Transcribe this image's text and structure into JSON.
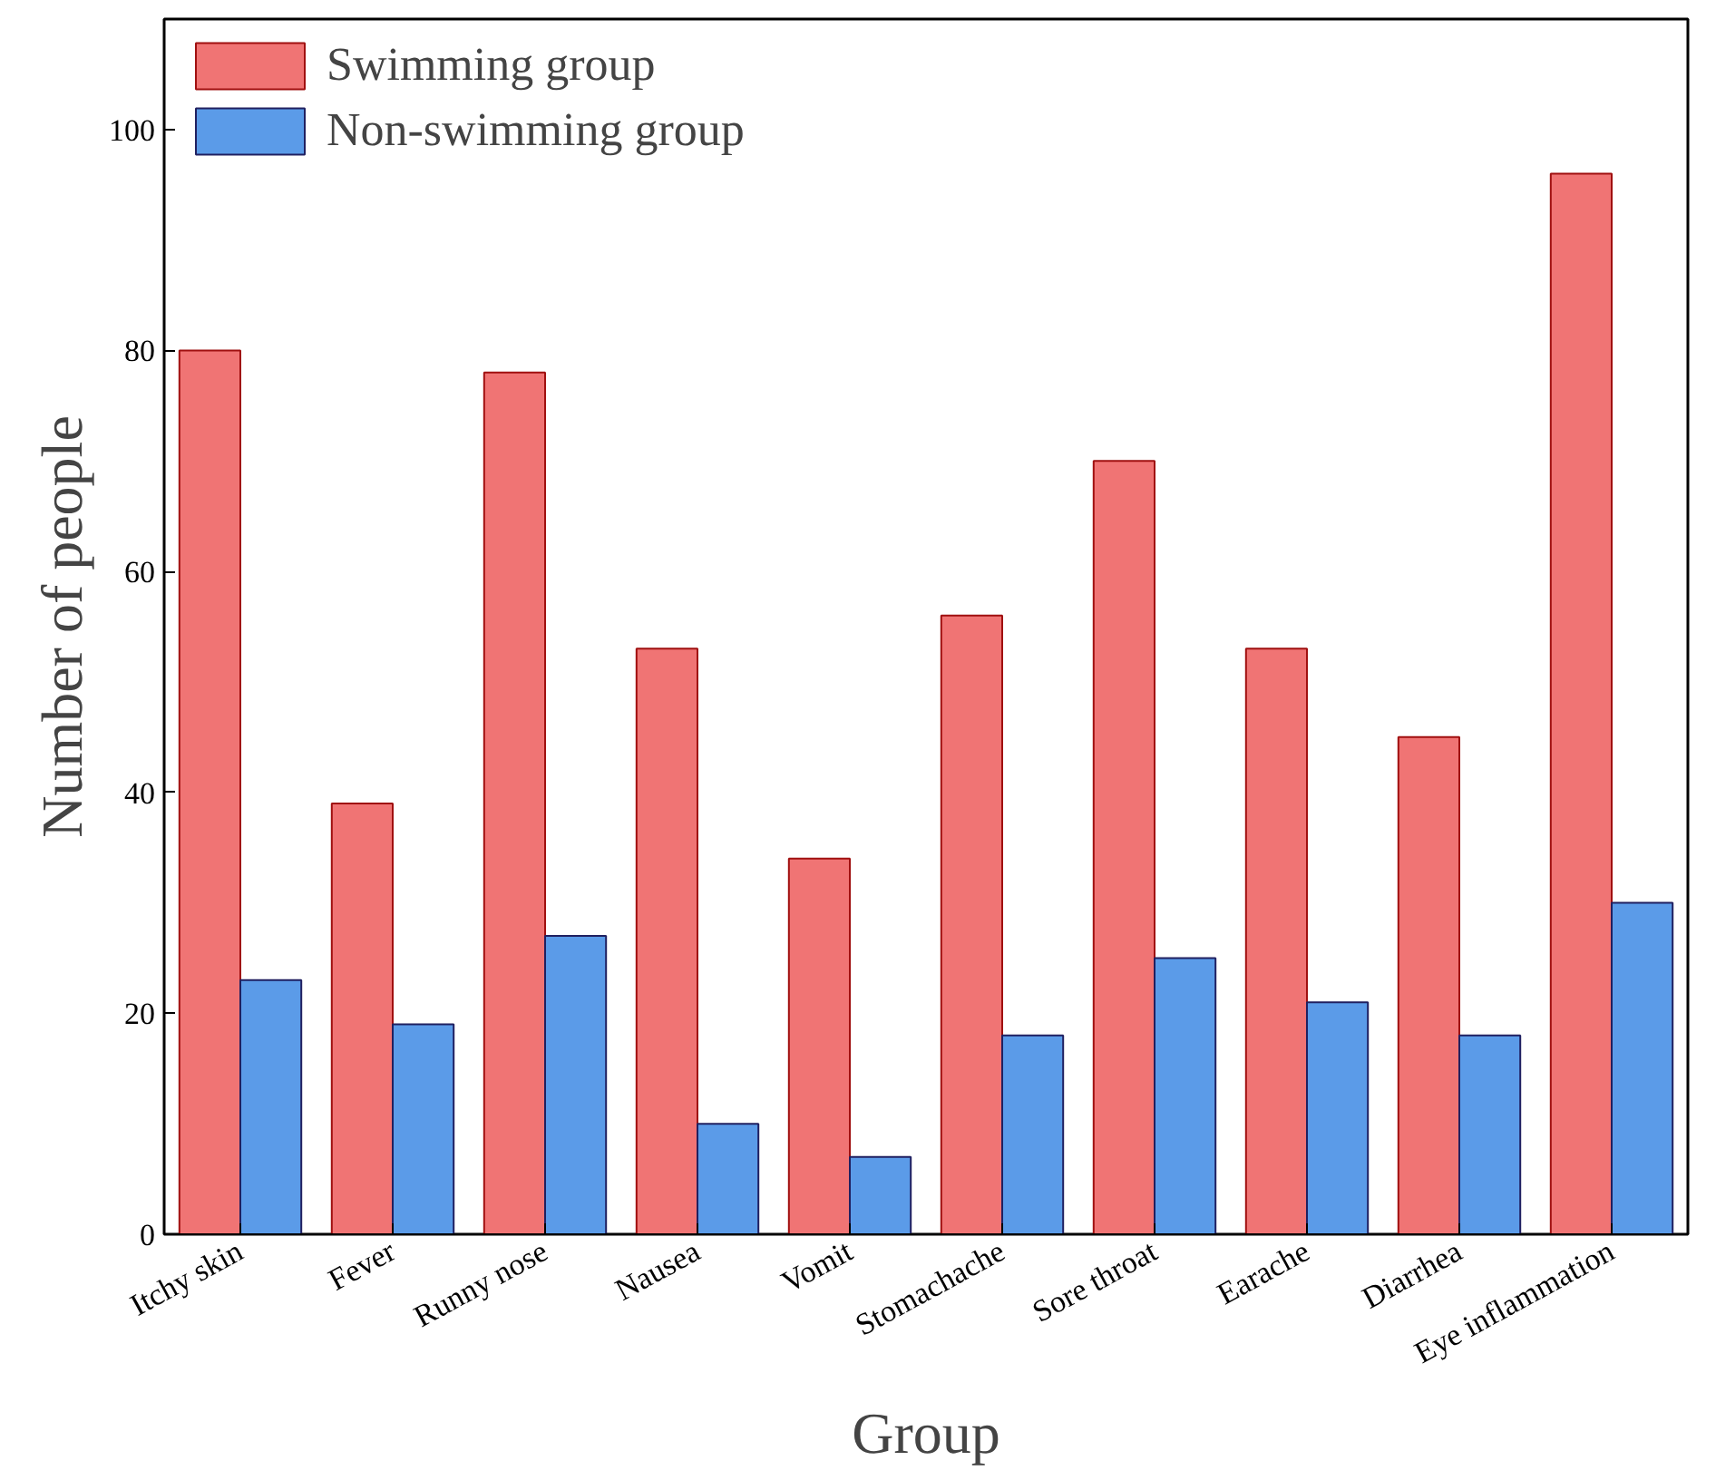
{
  "chart_data": {
    "type": "bar",
    "xlabel": "Group",
    "ylabel": "Number of people",
    "categories": [
      "Itchy skin",
      "Fever",
      "Runny nose",
      "Nausea",
      "Vomit",
      "Stomachache",
      "Sore throat",
      "Earache",
      "Diarrhea",
      "Eye inflammation"
    ],
    "series": [
      {
        "name": "Swimming group",
        "color": "#f07474",
        "values": [
          80,
          39,
          78,
          53,
          34,
          56,
          70,
          53,
          45,
          96
        ]
      },
      {
        "name": "Non-swimming group",
        "color": "#5b9be8",
        "values": [
          23,
          19,
          27,
          10,
          7,
          18,
          25,
          21,
          18,
          30
        ]
      }
    ],
    "ylim": [
      0,
      110
    ],
    "yticks": [
      0,
      20,
      40,
      60,
      80,
      100
    ],
    "grid": false,
    "legend": "top left"
  }
}
